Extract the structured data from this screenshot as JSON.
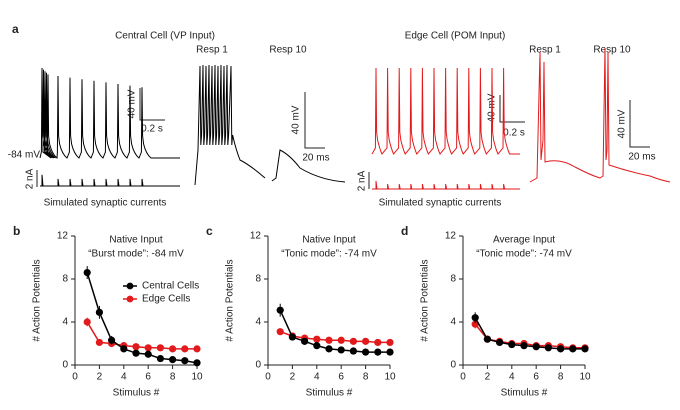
{
  "panel_a": {
    "label": "a",
    "left": {
      "title": "Central Cell (VP Input)",
      "resp1": "Resp 1",
      "resp10": "Resp 10",
      "scale_mv": "40 mV",
      "scale_s": "0.2 s",
      "potential": "-84 mV",
      "scale_na": "2 nA",
      "caption": "Simulated synaptic currents",
      "zoom_mv": "40 mV",
      "zoom_ms": "20 ms"
    },
    "right": {
      "title": "Edge Cell (POM Input)",
      "resp1": "Resp 1",
      "resp10": "Resp 10",
      "scale_mv": "40 mV",
      "scale_s": "0.2 s",
      "scale_na": "2 nA",
      "caption": "Simulated synaptic currents",
      "zoom_mv": "40 mV",
      "zoom_ms": "20 ms"
    }
  },
  "chart_data": [
    {
      "type": "line",
      "panel": "b",
      "title": "Native Input",
      "subtitle": "“Burst mode”: -84 mV",
      "x_label": "Stimulus #",
      "y_label": "# Action Potentials",
      "x": [
        1,
        2,
        3,
        4,
        5,
        6,
        7,
        8,
        9,
        10
      ],
      "xlim": [
        0,
        10
      ],
      "xticks": [
        0,
        2,
        4,
        6,
        8,
        10
      ],
      "ylim": [
        0,
        12
      ],
      "yticks": [
        0,
        4,
        8,
        12
      ],
      "legend": "top-right",
      "series": [
        {
          "name": "Central Cells",
          "color": "#000000",
          "values": [
            8.6,
            4.9,
            2.3,
            1.5,
            1.1,
            1.0,
            0.6,
            0.5,
            0.4,
            0.2
          ],
          "errors": [
            0.6,
            0.6,
            0.4,
            0.2,
            0.2,
            0.1,
            0.1,
            0.1,
            0.1,
            0.1
          ]
        },
        {
          "name": "Edge Cells",
          "color": "#e31a1c",
          "values": [
            4.0,
            2.1,
            2.0,
            1.8,
            1.7,
            1.6,
            1.6,
            1.5,
            1.5,
            1.5
          ],
          "errors": [
            0.4,
            0.2,
            0.1,
            0.1,
            0.1,
            0.1,
            0.1,
            0.1,
            0.1,
            0.1
          ]
        }
      ]
    },
    {
      "type": "line",
      "panel": "c",
      "title": "Native Input",
      "subtitle": "“Tonic mode”: -74 mV",
      "x_label": "Stimulus #",
      "y_label": "# Action Potentials",
      "x": [
        1,
        2,
        3,
        4,
        5,
        6,
        7,
        8,
        9,
        10
      ],
      "xlim": [
        0,
        10
      ],
      "xticks": [
        0,
        2,
        4,
        6,
        8,
        10
      ],
      "ylim": [
        0,
        12
      ],
      "yticks": [
        0,
        4,
        8,
        12
      ],
      "series": [
        {
          "color": "#000000",
          "values": [
            5.1,
            2.6,
            2.2,
            1.8,
            1.5,
            1.4,
            1.3,
            1.2,
            1.2,
            1.2
          ],
          "errors": [
            0.6,
            0.3,
            0.2,
            0.1,
            0.1,
            0.1,
            0.1,
            0.1,
            0.1,
            0.1
          ]
        },
        {
          "color": "#e31a1c",
          "values": [
            3.1,
            2.7,
            2.5,
            2.4,
            2.3,
            2.3,
            2.2,
            2.2,
            2.1,
            2.1
          ],
          "errors": [
            0.3,
            0.2,
            0.1,
            0.1,
            0.1,
            0.1,
            0.1,
            0.1,
            0.1,
            0.1
          ]
        }
      ]
    },
    {
      "type": "line",
      "panel": "d",
      "title": "Average Input",
      "subtitle": "“Tonic mode”: -74 mV",
      "x_label": "Stimulus #",
      "y_label": "# Action Potentials",
      "x": [
        1,
        2,
        3,
        4,
        5,
        6,
        7,
        8,
        9,
        10
      ],
      "xlim": [
        0,
        10
      ],
      "xticks": [
        0,
        2,
        4,
        6,
        8,
        10
      ],
      "ylim": [
        0,
        12
      ],
      "yticks": [
        0,
        4,
        8,
        12
      ],
      "series": [
        {
          "color": "#000000",
          "values": [
            4.4,
            2.4,
            2.1,
            1.9,
            1.8,
            1.7,
            1.6,
            1.5,
            1.5,
            1.5
          ],
          "errors": [
            0.5,
            0.2,
            0.1,
            0.1,
            0.1,
            0.1,
            0.1,
            0.1,
            0.1,
            0.1
          ]
        },
        {
          "color": "#e31a1c",
          "values": [
            3.8,
            2.4,
            2.2,
            2.0,
            2.0,
            1.8,
            1.8,
            1.7,
            1.6,
            1.6
          ],
          "errors": [
            0.4,
            0.2,
            0.1,
            0.1,
            0.1,
            0.1,
            0.1,
            0.1,
            0.1,
            0.1
          ]
        }
      ]
    }
  ]
}
